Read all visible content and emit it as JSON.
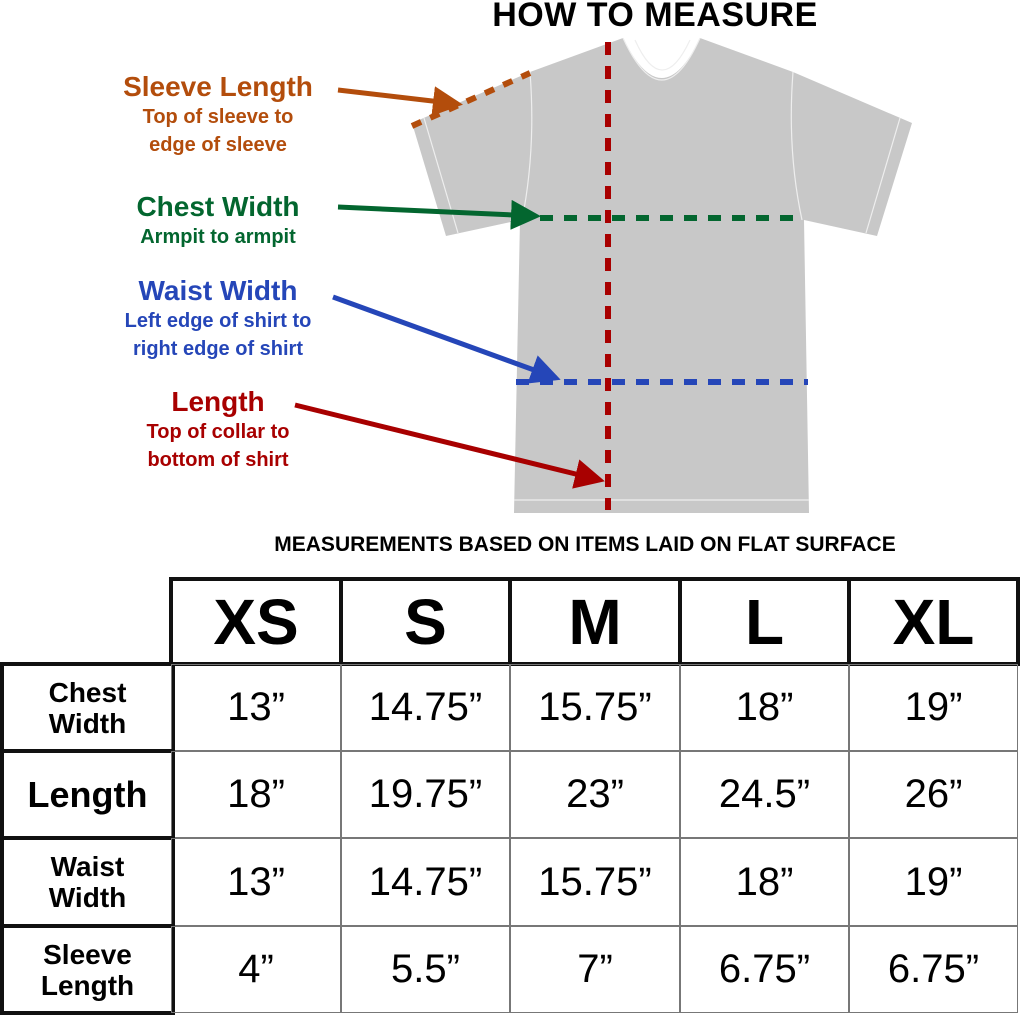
{
  "title": "HOW TO MEASURE",
  "callouts": [
    {
      "name": "sleeve-length",
      "heading": "Sleeve Length",
      "line1": "Top of sleeve to",
      "line2": "edge of sleeve",
      "color": "#b34d0c"
    },
    {
      "name": "chest-width",
      "heading": "Chest Width",
      "line1": "Armpit to armpit",
      "line2": "",
      "color": "#03662f"
    },
    {
      "name": "waist-width",
      "heading": "Waist Width",
      "line1": "Left edge of shirt to",
      "line2": "right edge of shirt",
      "color": "#2546b8"
    },
    {
      "name": "length",
      "heading": "Length",
      "line1": "Top of collar to",
      "line2": "bottom of shirt",
      "color": "#a80000"
    }
  ],
  "shirt_color": "#c8c8c8",
  "table_note": "MEASUREMENTS BASED ON ITEMS LAID ON FLAT SURFACE",
  "table": {
    "columns": [
      "XS",
      "S",
      "M",
      "L",
      "XL"
    ],
    "rows": [
      {
        "label1": "Chest",
        "label2": "Width",
        "values": [
          "13”",
          "14.75”",
          "15.75”",
          "18”",
          "19”"
        ]
      },
      {
        "label1": "Length",
        "label2": "",
        "values": [
          "18”",
          "19.75”",
          "23”",
          "24.5”",
          "26”"
        ]
      },
      {
        "label1": "Waist",
        "label2": "Width",
        "values": [
          "13”",
          "14.75”",
          "15.75”",
          "18”",
          "19”"
        ]
      },
      {
        "label1": "Sleeve",
        "label2": "Length",
        "values": [
          "4”",
          "5.5”",
          "7”",
          "6.75”",
          "6.75”"
        ]
      }
    ]
  }
}
